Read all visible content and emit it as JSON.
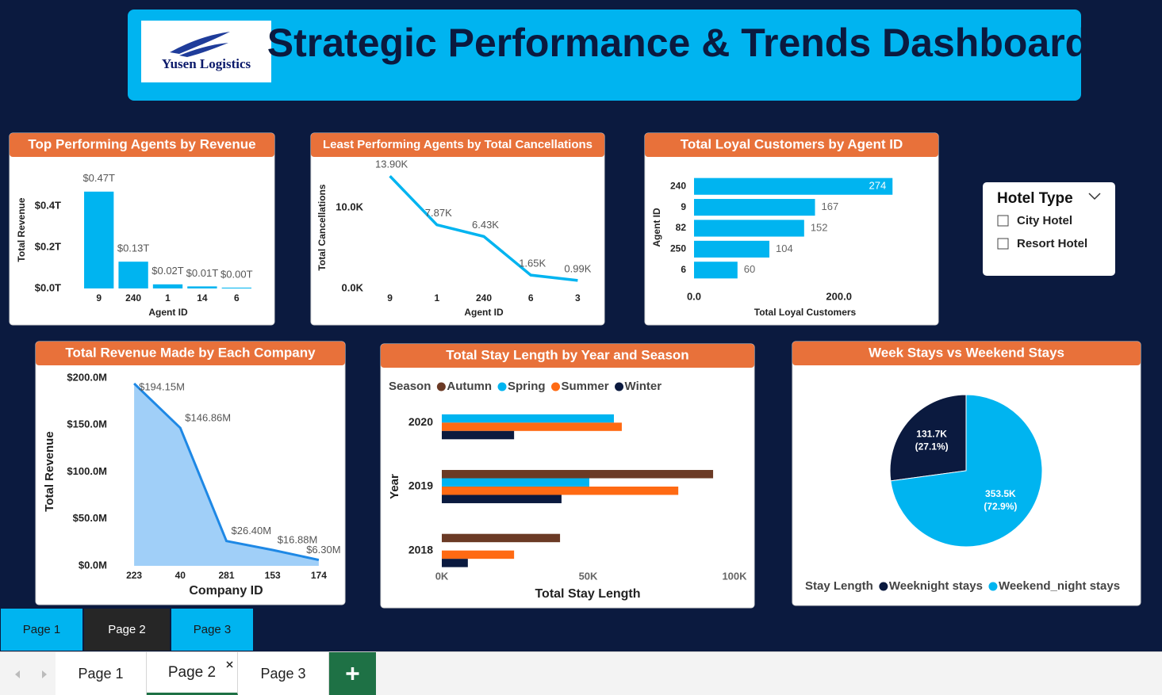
{
  "header": {
    "logo": "Yusen Logistics",
    "title": "Strategic Performance & Trends Dashboard"
  },
  "chart_data": [
    {
      "type": "bar",
      "title": "Top Performing Agents by Revenue",
      "x_label": "Agent ID",
      "y_label": "Total Revenue",
      "categories": [
        "9",
        "240",
        "1",
        "14",
        "6"
      ],
      "values": [
        0.47,
        0.13,
        0.02,
        0.01,
        0.004
      ],
      "value_labels": [
        "$0.47T",
        "$0.13T",
        "$0.02T",
        "$0.01T",
        "$0.00T"
      ],
      "color": "#00b4f0",
      "ylim": [
        0,
        0.5
      ],
      "yticks": [
        {
          "value": 0,
          "label": "$0.0T"
        },
        {
          "value": 0.2,
          "label": "$0.2T"
        },
        {
          "value": 0.4,
          "label": "$0.4T"
        }
      ]
    },
    {
      "type": "line",
      "title": "Least Performing Agents by Total Cancellations",
      "x_label": "Agent ID",
      "y_label": "Total Cancellations",
      "categories": [
        "9",
        "1",
        "240",
        "6",
        "3"
      ],
      "values": [
        13.9,
        7.87,
        6.43,
        1.65,
        0.99
      ],
      "value_labels": [
        "13.90K",
        "7.87K",
        "6.43K",
        "1.65K",
        "0.99K"
      ],
      "color": "#00b4f0",
      "ylim": [
        0,
        15
      ],
      "yticks": [
        {
          "value": 0,
          "label": "0.0K"
        },
        {
          "value": 10,
          "label": "10.0K"
        }
      ]
    },
    {
      "type": "bar",
      "orientation": "horizontal",
      "title": "Total Loyal Customers by Agent ID",
      "x_label": "Total Loyal Customers",
      "y_label": "Agent ID",
      "categories": [
        "240",
        "9",
        "82",
        "250",
        "6"
      ],
      "values": [
        274,
        167,
        152,
        104,
        60
      ],
      "color": "#00b4f0",
      "xlim": [
        0,
        300
      ],
      "xticks": [
        {
          "value": 0,
          "label": "0.0"
        },
        {
          "value": 200,
          "label": "200.0"
        }
      ]
    },
    {
      "type": "area",
      "title": "Total Revenue Made by Each Company",
      "x_label": "Company ID",
      "y_label": "Total Revenue",
      "categories": [
        "223",
        "40",
        "281",
        "153",
        "174"
      ],
      "values": [
        194.15,
        146.86,
        26.4,
        16.88,
        6.3
      ],
      "value_labels": [
        "$194.15M",
        "$146.86M",
        "$26.40M",
        "$16.88M",
        "$6.30M"
      ],
      "color": "#1e88e5",
      "fill": "#a0cff8",
      "ylim": [
        0,
        200
      ],
      "yticks": [
        {
          "value": 0,
          "label": "$0.0M"
        },
        {
          "value": 50,
          "label": "$50.0M"
        },
        {
          "value": 100,
          "label": "$100.0M"
        },
        {
          "value": 150,
          "label": "$150.0M"
        },
        {
          "value": 200,
          "label": "$200.0M"
        }
      ]
    },
    {
      "type": "bar",
      "orientation": "horizontal",
      "title": "Total Stay Length by Year and Season",
      "legend_title": "Season",
      "x_label": "Total Stay Length",
      "y_label": "Year",
      "categories": [
        "2020",
        "2019",
        "2018"
      ],
      "series": [
        {
          "name": "Autumn",
          "color": "#6b3a25",
          "values": [
            null,
            92.7,
            40.4
          ]
        },
        {
          "name": "Spring",
          "color": "#00b4f0",
          "values": [
            58.8,
            50.4,
            null
          ]
        },
        {
          "name": "Summer",
          "color": "#ff6a13",
          "values": [
            61.5,
            80.8,
            24.7
          ]
        },
        {
          "name": "Winter",
          "color": "#0b1a3f",
          "values": [
            24.7,
            40.9,
            8.9
          ]
        }
      ],
      "xlim": [
        0,
        100
      ],
      "xticks": [
        {
          "value": 0,
          "label": "0K"
        },
        {
          "value": 50,
          "label": "50K"
        },
        {
          "value": 100,
          "label": "100K"
        }
      ]
    },
    {
      "type": "pie",
      "title": "Week Stays vs Weekend Stays",
      "legend_title": "Stay Length",
      "categories": [
        "Weeknight stays",
        "Weekend_night stays"
      ],
      "values": [
        131.7,
        353.5
      ],
      "value_labels": [
        "131.7K",
        "353.5K"
      ],
      "percent_labels": [
        "(27.1%)",
        "(72.9%)"
      ],
      "colors": [
        "#0b1a3f",
        "#00b4f0"
      ]
    }
  ],
  "slicer": {
    "title": "Hotel Type",
    "options": [
      "City Hotel",
      "Resort Hotel"
    ]
  },
  "page_buttons": [
    "Page 1",
    "Page 2",
    "Page 3"
  ],
  "tabs": [
    "Page 1",
    "Page 2",
    "Page 3"
  ]
}
